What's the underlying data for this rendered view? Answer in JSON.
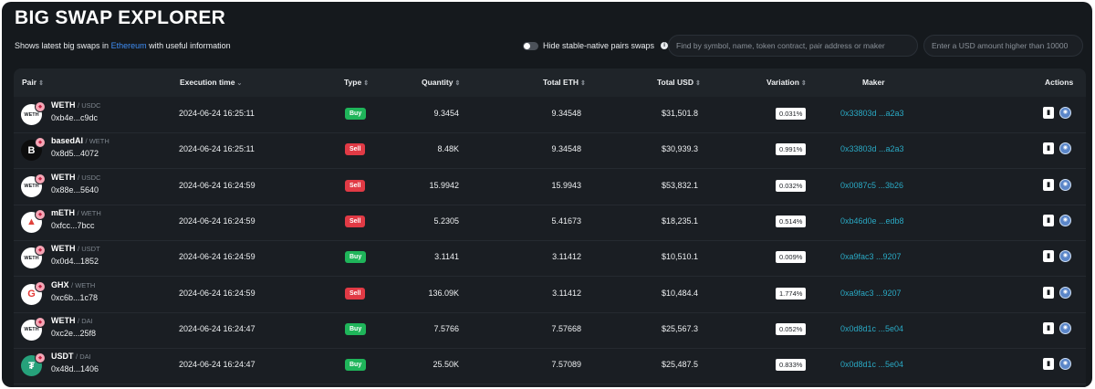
{
  "header": {
    "title": "BIG SWAP EXPLORER",
    "subtitle_prefix": "Shows latest big swaps in ",
    "network": "Ethereum",
    "subtitle_suffix": " with useful information",
    "toggle_label": "Hide stable-native pairs swaps",
    "search_placeholder": "Find by symbol, name, token contract, pair address or maker",
    "usd_placeholder": "Enter a USD amount higher than 10000"
  },
  "columns": {
    "pair": "Pair",
    "execution_time": "Execution time",
    "type": "Type",
    "quantity": "Quantity",
    "total_eth": "Total ETH",
    "total_usd": "Total USD",
    "variation": "Variation",
    "maker": "Maker",
    "actions": "Actions"
  },
  "colors": {
    "buy": "#1fb55a",
    "sell": "#e13a45",
    "maker_link": "#2aa9c4",
    "network_link": "#3f8ef5"
  },
  "rows": [
    {
      "base": "WETH",
      "quote": "USDC",
      "addr": "0xb4e...c9dc",
      "time": "2024-06-24 16:25:11",
      "type": "Buy",
      "qty": "9.3454",
      "eth": "9.34548",
      "usd": "$31,501.8",
      "var": "0.031%",
      "maker": "0x33803d ...a2a3",
      "icon": "weth-icon",
      "icon_text": "WETH",
      "icon_bg": "#ffffff",
      "icon_fg": "#1a1e23"
    },
    {
      "base": "basedAI",
      "quote": "WETH",
      "addr": "0x8d5...4072",
      "time": "2024-06-24 16:25:11",
      "type": "Sell",
      "qty": "8.48K",
      "eth": "9.34548",
      "usd": "$30,939.3",
      "var": "0.991%",
      "maker": "0x33803d ...a2a3",
      "icon": "basedai-icon",
      "icon_text": "B",
      "icon_bg": "#0d0d0d",
      "icon_fg": "#ffffff"
    },
    {
      "base": "WETH",
      "quote": "USDC",
      "addr": "0x88e...5640",
      "time": "2024-06-24 16:24:59",
      "type": "Sell",
      "qty": "15.9942",
      "eth": "15.9943",
      "usd": "$53,832.1",
      "var": "0.032%",
      "maker": "0x0087c5 ...3b26",
      "icon": "weth-icon",
      "icon_text": "WETH",
      "icon_bg": "#ffffff",
      "icon_fg": "#1a1e23"
    },
    {
      "base": "mETH",
      "quote": "WETH",
      "addr": "0xfcc...7bcc",
      "time": "2024-06-24 16:24:59",
      "type": "Sell",
      "qty": "5.2305",
      "eth": "5.41673",
      "usd": "$18,235.1",
      "var": "0.514%",
      "maker": "0xb46d0e ...edb8",
      "icon": "meth-icon",
      "icon_text": "▲",
      "icon_bg": "#ffffff",
      "icon_fg": "#e0413b"
    },
    {
      "base": "WETH",
      "quote": "USDT",
      "addr": "0x0d4...1852",
      "time": "2024-06-24 16:24:59",
      "type": "Buy",
      "qty": "3.1141",
      "eth": "3.11412",
      "usd": "$10,510.1",
      "var": "0.009%",
      "maker": "0xa9fac3 ...9207",
      "icon": "weth-icon",
      "icon_text": "WETH",
      "icon_bg": "#ffffff",
      "icon_fg": "#1a1e23"
    },
    {
      "base": "GHX",
      "quote": "WETH",
      "addr": "0xc6b...1c78",
      "time": "2024-06-24 16:24:59",
      "type": "Sell",
      "qty": "136.09K",
      "eth": "3.11412",
      "usd": "$10,484.4",
      "var": "1.774%",
      "maker": "0xa9fac3 ...9207",
      "icon": "ghx-icon",
      "icon_text": "G",
      "icon_bg": "#ffffff",
      "icon_fg": "#e53935"
    },
    {
      "base": "WETH",
      "quote": "DAI",
      "addr": "0xc2e...25f8",
      "time": "2024-06-24 16:24:47",
      "type": "Buy",
      "qty": "7.5766",
      "eth": "7.57668",
      "usd": "$25,567.3",
      "var": "0.052%",
      "maker": "0x0d8d1c ...5e04",
      "icon": "weth-icon",
      "icon_text": "WETH",
      "icon_bg": "#ffffff",
      "icon_fg": "#1a1e23"
    },
    {
      "base": "USDT",
      "quote": "DAI",
      "addr": "0x48d...1406",
      "time": "2024-06-24 16:24:47",
      "type": "Buy",
      "qty": "25.50K",
      "eth": "7.57089",
      "usd": "$25,487.5",
      "var": "0.833%",
      "maker": "0x0d8d1c ...5e04",
      "icon": "usdt-icon",
      "icon_text": "₮",
      "icon_bg": "#26a17b",
      "icon_fg": "#ffffff"
    }
  ]
}
